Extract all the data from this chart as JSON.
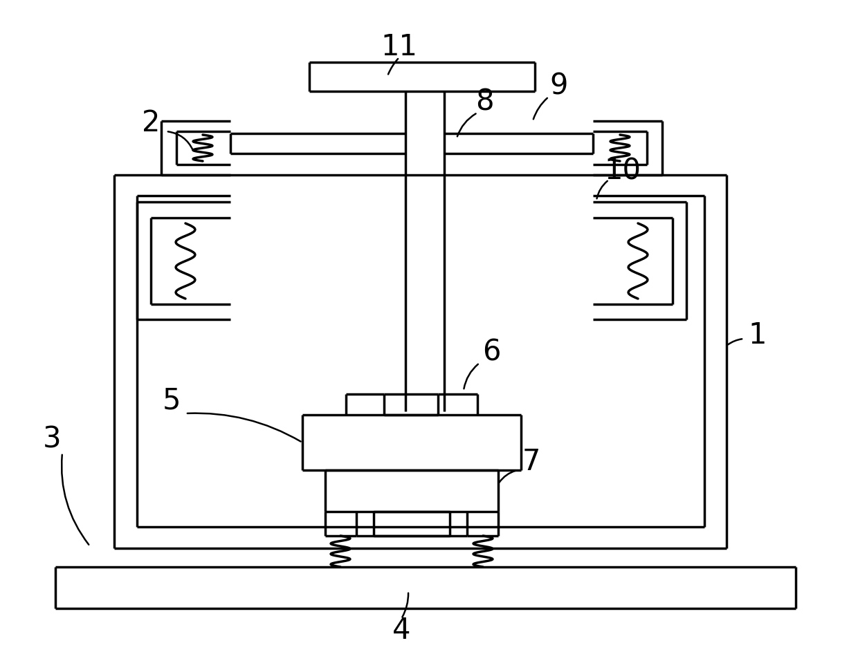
{
  "bg_color": "#ffffff",
  "line_color": "#000000",
  "lw": 2.5,
  "lw_thin": 1.8,
  "fig_width": 12.4,
  "fig_height": 9.72,
  "dpi": 100
}
